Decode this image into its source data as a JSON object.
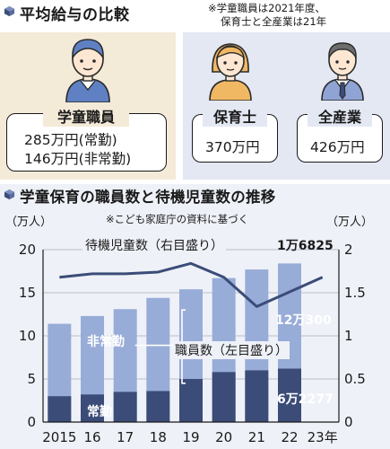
{
  "comparison": {
    "title": "平均給与の比較",
    "note_line1": "※学童職員は2021年度、",
    "note_line2": "保育士と全産業は21年",
    "gakudo": {
      "label": "学童職員",
      "line1": "285万円(常勤)",
      "line2": "146万円(非常勤)"
    },
    "hoikushi": {
      "label": "保育士",
      "value": "370万円"
    },
    "zensangyo": {
      "label": "全産業",
      "value": "426万円"
    }
  },
  "colors": {
    "orange_panel": "#f4ead8",
    "blue_panel": "#e3e8f3",
    "chart_panel": "#eef1f7",
    "bar_light": "#98acd8",
    "bar_dark": "#3b4c78",
    "line": "#3b4c78"
  },
  "chart_data": {
    "type": "bar+line",
    "title": "学童保育の職員数と待機児童数の推移",
    "source_note": "※こども家庭庁の資料に基づく",
    "left_unit": "（万人）",
    "right_unit": "（万人）",
    "categories": [
      "2015",
      "16",
      "17",
      "18",
      "19",
      "20",
      "21",
      "22",
      "23年"
    ],
    "left_axis": {
      "ylim": [
        0,
        20
      ],
      "ticks": [
        "0",
        "5",
        "10",
        "15",
        "20"
      ]
    },
    "right_axis": {
      "ylim": [
        0,
        2
      ],
      "ticks": [
        "0",
        "0.5",
        "1",
        "1.5",
        "2"
      ]
    },
    "staff_total": [
      11.4,
      12.3,
      13.1,
      14.4,
      15.4,
      16.7,
      17.7,
      18.4,
      null
    ],
    "staff_fulltime": [
      3.0,
      3.2,
      3.5,
      3.6,
      5.0,
      5.8,
      6.0,
      6.2,
      null
    ],
    "waiting_children": [
      1.68,
      1.72,
      1.72,
      1.74,
      1.84,
      1.68,
      1.34,
      null,
      1.68
    ],
    "labels": {
      "waiting_series": "待機児童数（右目盛り）",
      "staff_series": "職員数（左目盛り）",
      "parttime": "非常勤",
      "fulltime": "常勤",
      "last_waiting": "1万6825",
      "last_total": "12万300",
      "last_fulltime": "6万2277"
    }
  }
}
